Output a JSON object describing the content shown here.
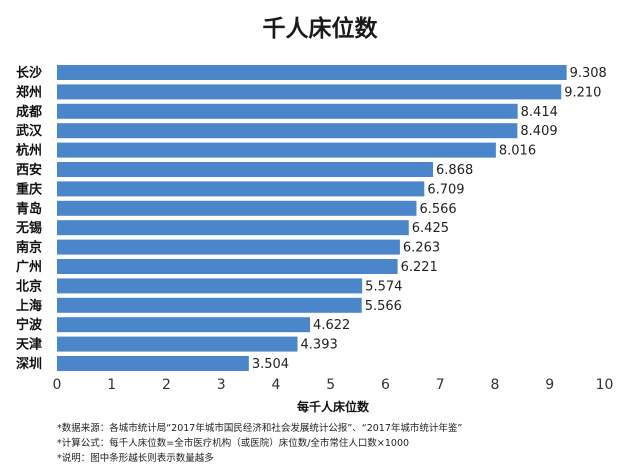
{
  "chart_data": {
    "type": "bar",
    "orientation": "horizontal",
    "title": "千人床位数",
    "xlabel": "每千人床位数",
    "ylabel": "",
    "categories": [
      "长沙",
      "郑州",
      "成都",
      "武汉",
      "杭州",
      "西安",
      "重庆",
      "青岛",
      "无锡",
      "南京",
      "广州",
      "北京",
      "上海",
      "宁波",
      "天津",
      "深圳"
    ],
    "values": [
      9.308,
      9.21,
      8.414,
      8.409,
      8.016,
      6.868,
      6.709,
      6.566,
      6.425,
      6.263,
      6.221,
      5.574,
      5.566,
      4.622,
      4.393,
      3.504
    ],
    "value_labels": [
      "9.308",
      "9.210",
      "8.414",
      "8.409",
      "8.016",
      "6.868",
      "6.709",
      "6.566",
      "6.425",
      "6.263",
      "6.221",
      "5.574",
      "5.566",
      "4.622",
      "4.393",
      "3.504"
    ],
    "xlim": [
      0,
      10
    ],
    "xticks": [
      0,
      1,
      2,
      3,
      4,
      5,
      6,
      7,
      8,
      9,
      10
    ],
    "grid": false,
    "legend": "none",
    "bar_color": "#4a86c9"
  },
  "notes": [
    "*数据来源：各城市统计局“2017年城市国民经济和社会发展统计公报”、“2017年城市统计年鉴”",
    "*计算公式：每千人床位数=全市医疗机构（或医院）床位数/全市常住人口数×1000",
    "*说明：图中条形越长则表示数量越多"
  ]
}
